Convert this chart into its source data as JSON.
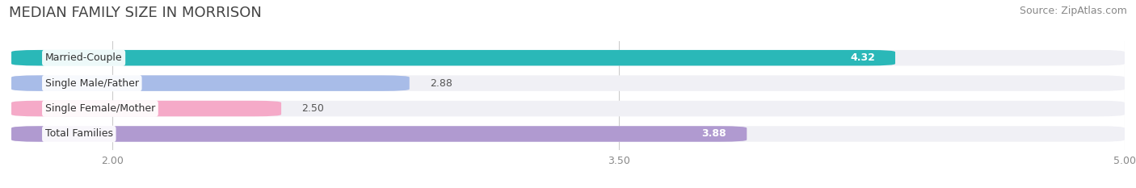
{
  "title": "MEDIAN FAMILY SIZE IN MORRISON",
  "source": "Source: ZipAtlas.com",
  "categories": [
    "Married-Couple",
    "Single Male/Father",
    "Single Female/Mother",
    "Total Families"
  ],
  "values": [
    4.32,
    2.88,
    2.5,
    3.88
  ],
  "bar_colors": [
    "#2ab8b8",
    "#a8bce8",
    "#f5aac8",
    "#b09ad0"
  ],
  "xlim_data": [
    2.0,
    5.0
  ],
  "x_axis_start": 1.7,
  "xticks": [
    2.0,
    3.5,
    5.0
  ],
  "xtick_labels": [
    "2.00",
    "3.50",
    "5.00"
  ],
  "bar_height": 0.62,
  "background_color": "#ffffff",
  "bar_bg_color": "#f0f0f5",
  "title_fontsize": 13,
  "source_fontsize": 9,
  "label_fontsize": 9,
  "value_fontsize": 9,
  "value_colors_inside": [
    "#ffffff",
    "#555555",
    "#555555",
    "#ffffff"
  ],
  "value_threshold": 3.5
}
